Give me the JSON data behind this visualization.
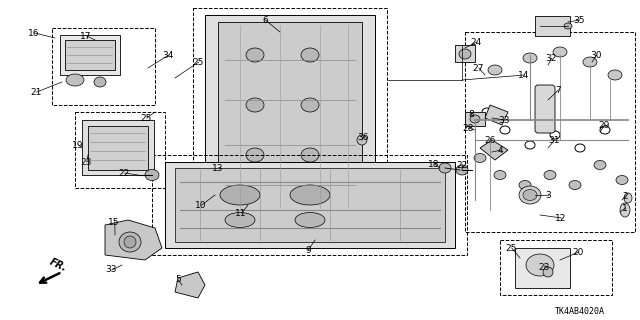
{
  "diagram_code": "TK4AB4020A",
  "background_color": "#ffffff",
  "figsize": [
    6.4,
    3.2
  ],
  "dpi": 100
}
